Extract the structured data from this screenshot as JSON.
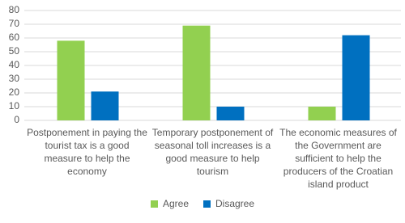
{
  "chart_data": {
    "type": "bar",
    "categories": [
      "Postponement in paying the tourist tax is a good measure to help the economy",
      "Temporary postponement of seasonal toll increases is a good measure to help tourism",
      "The economic measures of the Government are sufficient to help the producers of the Croatian island product"
    ],
    "series": [
      {
        "name": "Agree",
        "color": "#92d050",
        "values": [
          58,
          69,
          10
        ]
      },
      {
        "name": "Disagree",
        "color": "#0070c0",
        "values": [
          21,
          10,
          62
        ]
      }
    ],
    "ylim": [
      0,
      80
    ],
    "yticks": [
      0,
      10,
      20,
      30,
      40,
      50,
      60,
      70,
      80
    ],
    "grid": true,
    "legend": "bottom"
  }
}
